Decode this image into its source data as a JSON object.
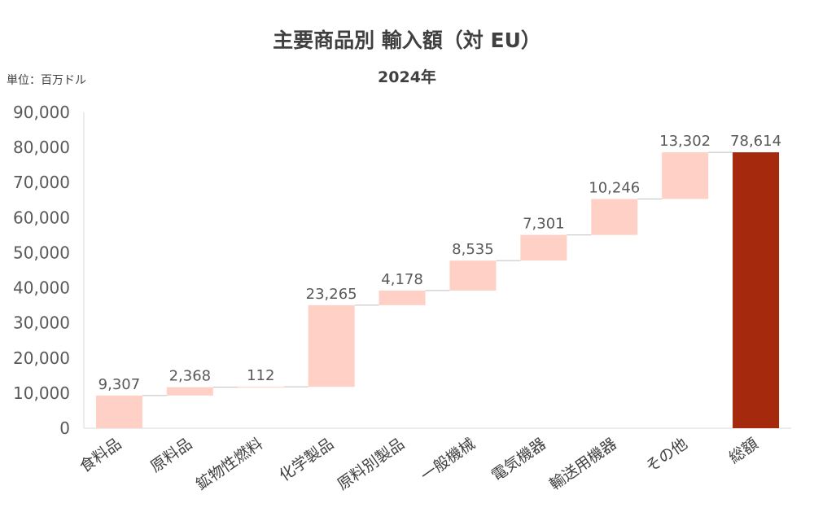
{
  "chart_data": {
    "type": "bar",
    "subtype": "waterfall",
    "title": "主要商品別 輸入額（対 EU）",
    "subtitle": "2024年",
    "unit_label": "単位：百万ドル",
    "categories": [
      "食料品",
      "原料品",
      "鉱物性燃料",
      "化学製品",
      "原料別製品",
      "一般機械",
      "電気機器",
      "輸送用機器",
      "その他",
      "総額"
    ],
    "values": [
      9307,
      2368,
      112,
      23265,
      4178,
      8535,
      7301,
      10246,
      13302,
      78614
    ],
    "value_labels": [
      "9,307",
      "2,368",
      "112",
      "23,265",
      "4,178",
      "8,535",
      "7,301",
      "10,246",
      "13,302",
      "78,614"
    ],
    "total_index": 9,
    "ylim": [
      0,
      90000
    ],
    "yticks": [
      "0",
      "10,000",
      "20,000",
      "30,000",
      "40,000",
      "50,000",
      "60,000",
      "70,000",
      "80,000",
      "90,000"
    ],
    "colors": {
      "increment": "#FFD0C5",
      "total": "#A52A0D",
      "connector": "#BFBFBF",
      "axis": "#D9D9D9"
    }
  }
}
